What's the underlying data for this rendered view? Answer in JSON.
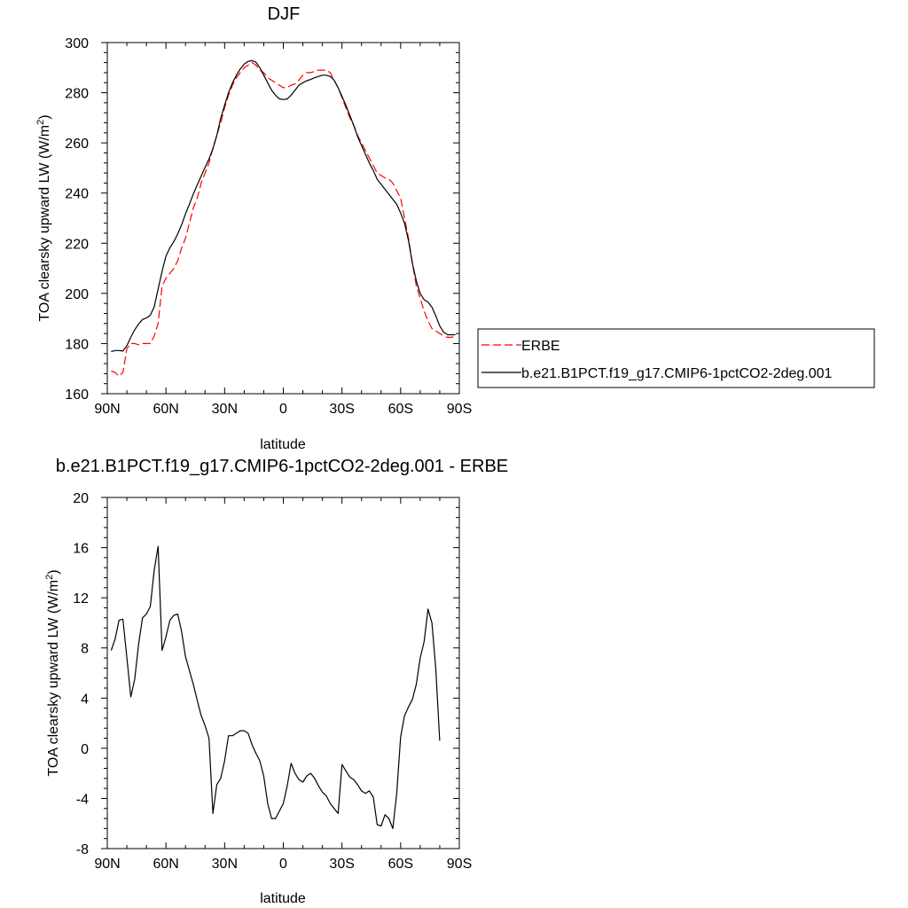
{
  "chart_data": [
    {
      "type": "line",
      "title": "DJF",
      "xlabel": "latitude",
      "ylabel": "TOA clearsky upward LW (W/m",
      "ylabel_sup": "2",
      "ylabel_tail": ")",
      "xlim": [
        90,
        -90
      ],
      "ylim": [
        160,
        300
      ],
      "x_ticks": [
        90,
        60,
        30,
        0,
        -30,
        -60,
        -90
      ],
      "x_tick_labels": [
        "90N",
        "60N",
        "30N",
        "0",
        "30S",
        "60S",
        "90S"
      ],
      "y_ticks": [
        160,
        180,
        200,
        220,
        240,
        260,
        280,
        300
      ],
      "y_tick_labels": [
        "160",
        "180",
        "200",
        "220",
        "240",
        "260",
        "280",
        "300"
      ],
      "grid": false,
      "legend": "right",
      "series": [
        {
          "name": "ERBE",
          "color": "#ff0000",
          "dash": "dashed",
          "x": [
            88,
            86,
            84,
            82,
            80,
            78,
            76,
            74,
            72,
            70,
            68,
            66,
            64,
            62,
            60,
            58,
            56,
            54,
            52,
            50,
            48,
            46,
            44,
            42,
            40,
            38,
            36,
            34,
            32,
            30,
            28,
            26,
            24,
            22,
            20,
            18,
            16,
            14,
            12,
            10,
            8,
            6,
            4,
            2,
            0,
            -2,
            -4,
            -6,
            -8,
            -10,
            -12,
            -14,
            -16,
            -18,
            -20,
            -22,
            -24,
            -26,
            -28,
            -30,
            -32,
            -34,
            -36,
            -38,
            -40,
            -42,
            -44,
            -46,
            -48,
            -50,
            -52,
            -54,
            -56,
            -58,
            -60,
            -62,
            -64,
            -66,
            -68,
            -70,
            -72,
            -74,
            -76,
            -78,
            -80,
            -82,
            -84,
            -86,
            -88
          ],
          "y": [
            169,
            168.5,
            167,
            168.5,
            178,
            180,
            180,
            179.5,
            180,
            180,
            180,
            183,
            188,
            203,
            206,
            208,
            210,
            213,
            218,
            222,
            228,
            234,
            238,
            244,
            248,
            252,
            258,
            263,
            268,
            274,
            279,
            283,
            286,
            288,
            290,
            291,
            292,
            291,
            289,
            288,
            286,
            285,
            284,
            283,
            282,
            282,
            283,
            283.5,
            285,
            287,
            288,
            288,
            288.5,
            289,
            289,
            289,
            288,
            285,
            282,
            278,
            274,
            270,
            267,
            263,
            260,
            257,
            254,
            251,
            248,
            247,
            246,
            245.5,
            244,
            241,
            238,
            230,
            222,
            212,
            203,
            198,
            193,
            189,
            186,
            185,
            184,
            183,
            182.5,
            182.5,
            183
          ]
        },
        {
          "name": "b.e21.B1PCT.f19_g17.CMIP6-1pctCO2-2deg.001",
          "color": "#000000",
          "dash": "solid",
          "x": [
            88,
            86,
            84,
            82,
            80,
            78,
            76,
            74,
            72,
            70,
            68,
            66,
            64,
            62,
            60,
            58,
            56,
            54,
            52,
            50,
            48,
            46,
            44,
            42,
            40,
            38,
            36,
            34,
            32,
            30,
            28,
            26,
            24,
            22,
            20,
            18,
            16,
            14,
            12,
            10,
            8,
            6,
            4,
            2,
            0,
            -2,
            -4,
            -6,
            -8,
            -10,
            -12,
            -14,
            -16,
            -18,
            -20,
            -22,
            -24,
            -26,
            -28,
            -30,
            -32,
            -34,
            -36,
            -38,
            -40,
            -42,
            -44,
            -46,
            -48,
            -50,
            -52,
            -54,
            -56,
            -58,
            -60,
            -62,
            -64,
            -66,
            -68,
            -70,
            -72,
            -74,
            -76,
            -78,
            -80,
            -82,
            -84,
            -86,
            -88
          ],
          "y": [
            176.8,
            177.2,
            177.2,
            177,
            179.2,
            182.5,
            185.5,
            187.8,
            189.6,
            190.2,
            191.3,
            194.6,
            201.7,
            208.8,
            214.9,
            218.2,
            220.6,
            223.7,
            227.3,
            231.7,
            235.5,
            239.6,
            243.3,
            246.8,
            250.3,
            253.6,
            257.6,
            263,
            269.8,
            275,
            280,
            284,
            287,
            289.5,
            291.4,
            292.5,
            292.8,
            292.2,
            290,
            287,
            284,
            281,
            279,
            277.5,
            277.3,
            277.5,
            279,
            281,
            283,
            284,
            284.8,
            285.3,
            286,
            286.5,
            287,
            287,
            286.5,
            285,
            282,
            278.5,
            275,
            271,
            267,
            262.5,
            259,
            255.5,
            252,
            249,
            245.5,
            243.5,
            241.5,
            239.5,
            237.5,
            235.5,
            232,
            228,
            221,
            212,
            205,
            200,
            197.5,
            196.5,
            194.5,
            191,
            187,
            184.5,
            183.5,
            183.5,
            183.5
          ]
        }
      ]
    },
    {
      "type": "line",
      "title": "b.e21.B1PCT.f19_g17.CMIP6-1pctCO2-2deg.001 - ERBE",
      "xlabel": "latitude",
      "ylabel": "TOA clearsky upward LW (W/m",
      "ylabel_sup": "2",
      "ylabel_tail": ")",
      "xlim": [
        90,
        -90
      ],
      "ylim": [
        -8,
        20
      ],
      "x_ticks": [
        90,
        60,
        30,
        0,
        -30,
        -60,
        -90
      ],
      "x_tick_labels": [
        "90N",
        "60N",
        "30N",
        "0",
        "30S",
        "60S",
        "90S"
      ],
      "y_ticks": [
        -8,
        -4,
        0,
        4,
        8,
        12,
        16,
        20
      ],
      "y_tick_labels": [
        "-8",
        "-4",
        "0",
        "4",
        "8",
        "12",
        "16",
        "20"
      ],
      "grid": false,
      "series": [
        {
          "color": "#000000",
          "dash": "solid",
          "x": [
            88,
            86,
            84,
            82,
            80,
            78,
            76,
            74,
            72,
            70,
            68,
            66,
            64,
            62,
            60,
            58,
            56,
            54,
            52,
            50,
            48,
            46,
            44,
            42,
            40,
            38,
            36,
            34,
            32,
            30,
            28,
            26,
            24,
            22,
            20,
            18,
            16,
            14,
            12,
            10,
            8,
            6,
            4,
            2,
            0,
            -2,
            -4,
            -6,
            -8,
            -10,
            -12,
            -14,
            -16,
            -18,
            -20,
            -22,
            -24,
            -26,
            -28,
            -30,
            -32,
            -34,
            -36,
            -38,
            -40,
            -42,
            -44,
            -46,
            -48,
            -50,
            -52,
            -54,
            -56,
            -58,
            -60,
            -62,
            -64,
            -66,
            -68,
            -70,
            -72,
            -74,
            -76,
            -78,
            -80,
            -82,
            -84,
            -86,
            -88
          ],
          "y": [
            7.8,
            8.7,
            10.2,
            10.3,
            7.2,
            4.1,
            5.5,
            8.3,
            10.4,
            10.7,
            11.3,
            14.2,
            16.1,
            7.8,
            8.9,
            10.2,
            10.6,
            10.7,
            9.3,
            7.3,
            6.2,
            5.1,
            3.8,
            2.6,
            1.8,
            0.8,
            -5.2,
            -2.9,
            -2.4,
            -1,
            1,
            1,
            1.2,
            1.4,
            1.4,
            1.2,
            0.3,
            -0.4,
            -1,
            -2.2,
            -4.4,
            -5.6,
            -5.6,
            -5,
            -4.4,
            -3,
            -1.2,
            -2,
            -2.5,
            -2.7,
            -2.2,
            -2,
            -2.4,
            -3,
            -3.5,
            -3.8,
            -4.4,
            -4.8,
            -5.2,
            -1.3,
            -1.8,
            -2.3,
            -2.5,
            -2.9,
            -3.4,
            -3.6,
            -3.4,
            -3.9,
            -6.1,
            -6.2,
            -5.3,
            -5.6,
            -6.4,
            -3.6,
            0.9,
            2.6,
            3.3,
            3.9,
            5.1,
            7.2,
            8.5,
            11.1,
            10,
            6.3,
            0.6,
            null,
            null,
            null,
            null
          ]
        }
      ]
    }
  ]
}
